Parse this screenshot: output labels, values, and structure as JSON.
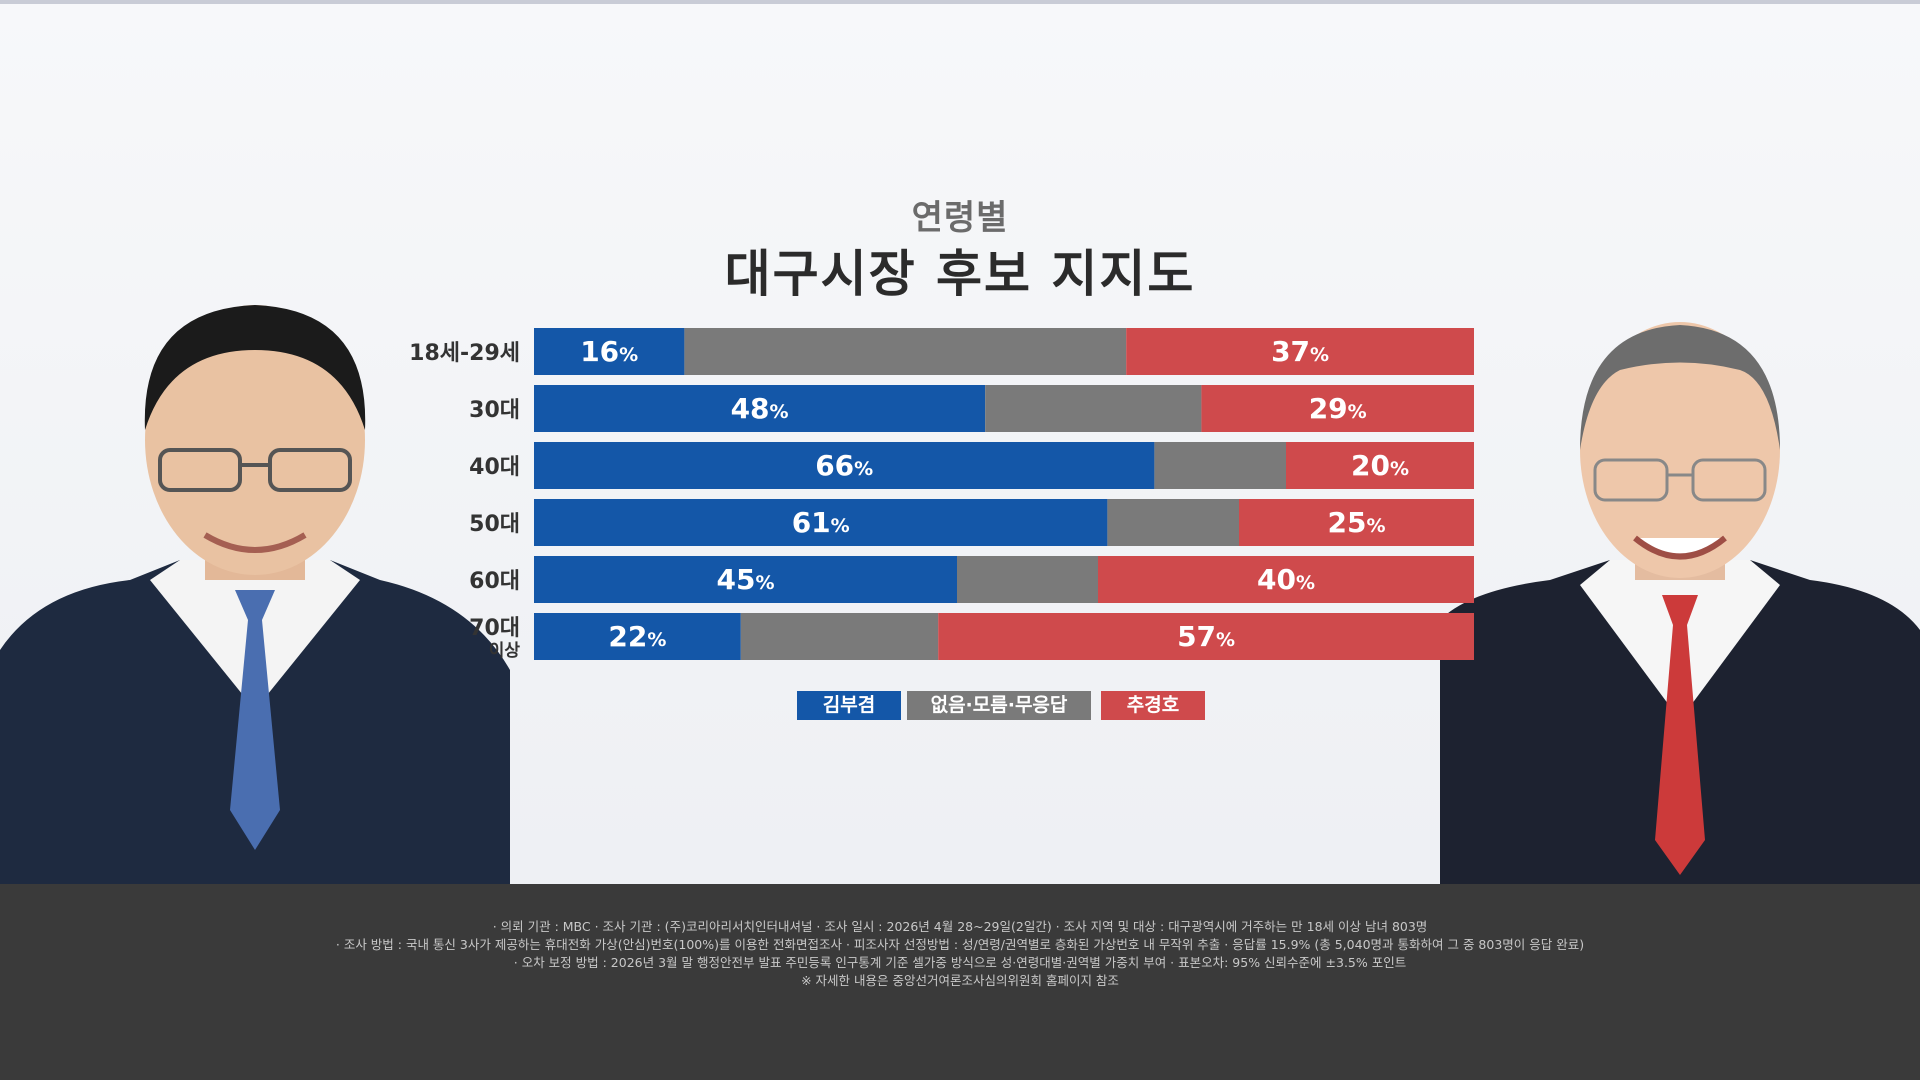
{
  "header": {
    "subtitle": "연령별",
    "title": "대구시장 후보 지지도"
  },
  "colors": {
    "kim": "#1457a8",
    "none": "#7a7a7a",
    "choo": "#cf4a4c"
  },
  "chart_data": {
    "type": "bar",
    "stacked": true,
    "orientation": "horizontal",
    "categories": [
      "18세-29세",
      "30대",
      "40대",
      "50대",
      "60대",
      "70대 이상"
    ],
    "series": [
      {
        "name": "김부겸",
        "values": [
          16,
          48,
          66,
          61,
          45,
          22
        ]
      },
      {
        "name": "없음·모름·무응답",
        "values": [
          47,
          23,
          14,
          14,
          15,
          21
        ]
      },
      {
        "name": "추경호",
        "values": [
          37,
          29,
          20,
          25,
          40,
          57
        ]
      }
    ],
    "unit": "%",
    "xlim": [
      0,
      100
    ],
    "legend_position": "bottom"
  },
  "legend": {
    "kim": "김부겸",
    "none": "없음·모름·무응답",
    "choo": "추경호"
  },
  "footer": {
    "line1": "· 의뢰 기관 : MBC  · 조사 기관 : (주)코리아리서치인터내셔널  · 조사 일시 : 2026년 4월 28~29일(2일간)  · 조사 지역 및 대상 : 대구광역시에 거주하는 만 18세 이상 남녀 803명",
    "line2": "· 조사 방법 : 국내 통신 3사가 제공하는 휴대전화 가상(안심)번호(100%)를 이용한 전화면접조사  · 피조사자 선정방법 : 성/연령/권역별로 층화된 가상번호 내 무작위 추출  · 응답률 15.9% (총 5,040명과 통화하여 그 중 803명이 응답 완료)",
    "line3": "· 오차 보정 방법 : 2026년 3월 말 행정안전부 발표 주민등록 인구통계 기준 셀가중 방식으로 성·연령대별·권역별 가중치 부여  · 표본오차: 95% 신뢰수준에 ±3.5% 포인트",
    "line4": "※ 자세한 내용은 중앙선거여론조사심의위원회 홈페이지 참조"
  }
}
